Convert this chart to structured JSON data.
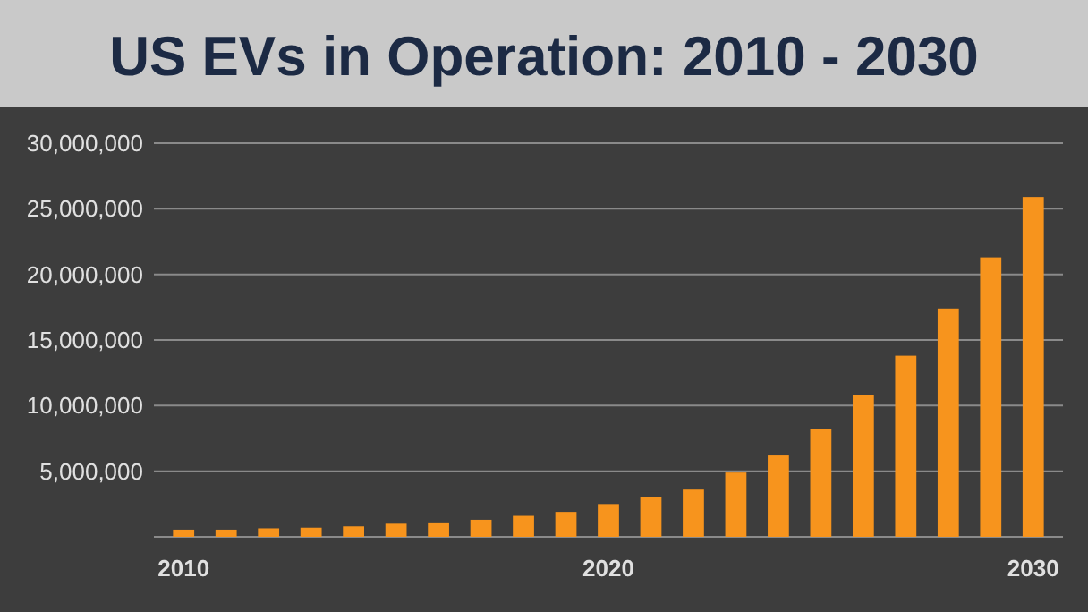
{
  "chart_data": {
    "type": "bar",
    "title": "US EVs in Operation: 2010 - 2030",
    "x": [
      2010,
      2011,
      2012,
      2013,
      2014,
      2015,
      2016,
      2017,
      2018,
      2019,
      2020,
      2021,
      2022,
      2023,
      2024,
      2025,
      2026,
      2027,
      2028,
      2029,
      2030
    ],
    "values": [
      550000,
      550000,
      650000,
      700000,
      800000,
      1000000,
      1100000,
      1300000,
      1600000,
      1900000,
      2500000,
      3000000,
      3600000,
      4900000,
      6200000,
      8200000,
      10800000,
      13800000,
      17400000,
      21300000,
      25900000
    ],
    "color": "#f7941d",
    "xlim": [
      2009.3,
      2030.7
    ],
    "xticks": [
      2010,
      2020,
      2030
    ],
    "ylim": [
      0,
      30000000
    ],
    "yticks": [
      {
        "value": 0,
        "label": null
      },
      {
        "value": 5000000,
        "label": "5,000,000"
      },
      {
        "value": 10000000,
        "label": "10,000,000"
      },
      {
        "value": 15000000,
        "label": "15,000,000"
      },
      {
        "value": 20000000,
        "label": "20,000,000"
      },
      {
        "value": 25000000,
        "label": "25,000,000"
      },
      {
        "value": 30000000,
        "label": "30,000,000"
      }
    ],
    "grid": "y"
  }
}
